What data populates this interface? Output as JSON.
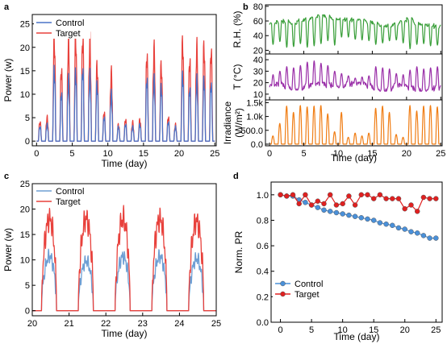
{
  "chart_data": [
    {
      "panel": "a",
      "type": "line",
      "xlabel": "Time (day)",
      "ylabel": "Power (w)",
      "xlim": [
        -0.6,
        25.2
      ],
      "ylim": [
        -1,
        27
      ],
      "xticks": [
        0,
        5,
        10,
        15,
        20,
        25
      ],
      "yticks": [
        0,
        5,
        10,
        15,
        20,
        25
      ],
      "legend": "top-left",
      "series_colors": {
        "control": "#4a73c7",
        "target": "#e8413c"
      },
      "x": [
        0,
        1,
        2,
        3,
        4,
        5,
        6,
        7,
        8,
        9,
        10,
        11,
        12,
        13,
        14,
        15,
        16,
        17,
        18,
        19,
        20,
        21,
        22,
        23,
        24
      ],
      "series": [
        {
          "name": "Control",
          "values": [
            3.0,
            3.5,
            15.0,
            10.0,
            13.0,
            14.5,
            15.0,
            14.0,
            12.0,
            5.0,
            10.0,
            3.0,
            3.5,
            3.0,
            3.5,
            13.0,
            13.0,
            11.5,
            4.0,
            3.0,
            14.0,
            11.0,
            13.0,
            13.0,
            12.0
          ]
        },
        {
          "name": "Target",
          "values": [
            4.0,
            5.0,
            21.5,
            15.0,
            21.0,
            22.0,
            21.5,
            21.0,
            16.0,
            6.0,
            14.5,
            3.5,
            4.5,
            4.0,
            4.5,
            18.0,
            19.5,
            16.0,
            5.0,
            3.5,
            21.0,
            17.0,
            20.0,
            20.0,
            19.0
          ]
        }
      ]
    },
    {
      "panel": "b",
      "type": "line",
      "xlabel": "Time (day)",
      "xlim": [
        -0.6,
        25.2
      ],
      "xticks": [
        0,
        5,
        10,
        15,
        20,
        25
      ],
      "subplots": [
        {
          "ylabel": "R.H. (%)",
          "color": "#3a9f3a",
          "ylim": [
            15,
            82
          ],
          "yticks": [
            20,
            40,
            60,
            80
          ],
          "night_values": [
            55,
            58,
            60,
            58,
            62,
            62,
            63,
            66,
            66,
            64,
            64,
            62,
            60,
            60,
            58,
            58,
            55,
            54,
            55,
            58,
            62,
            57,
            57,
            55,
            52
          ],
          "day_values": [
            28,
            32,
            24,
            25,
            29,
            24,
            26,
            29,
            33,
            27,
            38,
            38,
            35,
            34,
            33,
            28,
            30,
            33,
            34,
            30,
            22,
            28,
            29,
            26,
            27
          ]
        },
        {
          "ylabel": "T (°C)",
          "color": "#9a2fa8",
          "ylim": [
            5,
            45
          ],
          "yticks": [
            10,
            20,
            30,
            40
          ],
          "night_values": [
            16,
            18,
            17,
            16,
            16,
            17,
            17,
            18,
            18,
            19,
            18,
            19,
            18,
            18,
            17,
            16,
            15,
            15,
            17,
            16,
            15,
            15,
            15,
            16,
            15
          ],
          "day_values": [
            27,
            30,
            34,
            33,
            35,
            38,
            39,
            37,
            35,
            30,
            28,
            26,
            24,
            25,
            26,
            34,
            33,
            32,
            28,
            27,
            31,
            34,
            32,
            33,
            34
          ]
        },
        {
          "ylabel": "Irradiance (W/m²)",
          "color": "#f07d14",
          "ylim": [
            -60,
            1600
          ],
          "yticks": [
            0,
            500,
            1000,
            1500
          ],
          "tick_labels": [
            "0.0",
            "500.0",
            "1.0k",
            "1.5k"
          ],
          "peak_values": [
            300,
            750,
            1380,
            1150,
            1400,
            1350,
            1380,
            1400,
            1100,
            450,
            1150,
            250,
            400,
            300,
            400,
            1300,
            1380,
            1150,
            350,
            250,
            1400,
            1200,
            1380,
            1400,
            1350
          ]
        }
      ]
    },
    {
      "panel": "c",
      "type": "line",
      "xlabel": "Time (day)",
      "ylabel": "Power (w)",
      "xlim": [
        20,
        25
      ],
      "ylim": [
        -1,
        25
      ],
      "xticks": [
        20,
        21,
        22,
        23,
        24,
        25
      ],
      "yticks": [
        0,
        5,
        10,
        15,
        20,
        25
      ],
      "legend": "top-left",
      "series_colors": {
        "control": "#6e9fd4",
        "target": "#e8413c"
      },
      "day_start": [
        20.25,
        21.25,
        22.25,
        23.25,
        24.25
      ],
      "day_end": [
        20.66,
        21.66,
        22.66,
        23.66,
        24.66
      ],
      "series": [
        {
          "name": "Control",
          "peak_values": [
            11.5,
            10.5,
            11.5,
            11.5,
            11.0
          ]
        },
        {
          "name": "Target",
          "peak_values": [
            19.5,
            19.5,
            19.5,
            19.5,
            19.0
          ]
        }
      ]
    },
    {
      "panel": "d",
      "type": "line",
      "xlabel": "Time (day)",
      "ylabel": "Norm. PR",
      "xlim": [
        -1.5,
        26
      ],
      "ylim": [
        0,
        1.1
      ],
      "xticks": [
        0,
        5,
        10,
        15,
        20,
        25
      ],
      "yticks": [
        0.0,
        0.2,
        0.4,
        0.6,
        0.8,
        1.0
      ],
      "tick_labels_y": [
        "0.0",
        "0.2",
        "0.4",
        "0.6",
        "0.8",
        "1.0"
      ],
      "legend": "bottom-left",
      "series_colors": {
        "control": "#4a90d9",
        "target": "#e02020"
      },
      "x": [
        0,
        1,
        2,
        3,
        4,
        5,
        6,
        7,
        8,
        9,
        10,
        11,
        12,
        13,
        14,
        15,
        16,
        17,
        18,
        19,
        20,
        21,
        22,
        23,
        24,
        25
      ],
      "series": [
        {
          "name": "Control",
          "values": [
            1.0,
            0.99,
            0.99,
            0.96,
            0.94,
            0.92,
            0.9,
            0.88,
            0.87,
            0.86,
            0.85,
            0.84,
            0.83,
            0.82,
            0.81,
            0.8,
            0.78,
            0.77,
            0.76,
            0.74,
            0.73,
            0.71,
            0.7,
            0.68,
            0.66,
            0.66
          ]
        },
        {
          "name": "Target",
          "values": [
            1.0,
            0.99,
            1.0,
            0.93,
            1.0,
            0.92,
            0.95,
            0.93,
            1.0,
            0.92,
            0.93,
            0.99,
            0.92,
            1.0,
            1.0,
            0.97,
            1.0,
            0.97,
            0.97,
            0.97,
            0.89,
            0.92,
            0.87,
            0.98,
            0.97,
            0.97
          ]
        }
      ]
    }
  ]
}
